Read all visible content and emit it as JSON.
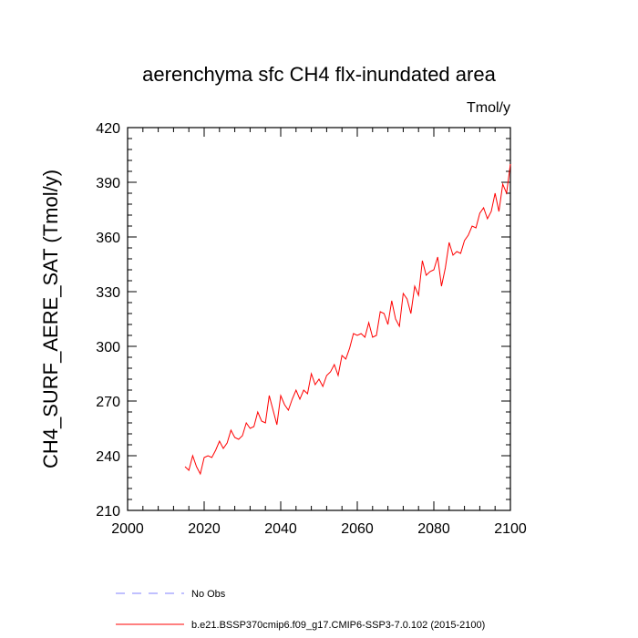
{
  "chart_data": {
    "type": "line",
    "title": "aerenchyma sfc CH4 flx-inundated area",
    "units_label": "Tmol/y",
    "ylabel": "CH4_SURF_AERE_SAT  (Tmol/y)",
    "xlabel": "",
    "xlim": [
      2000,
      2100
    ],
    "ylim": [
      210,
      420
    ],
    "x_ticks": [
      2000,
      2020,
      2040,
      2060,
      2080,
      2100
    ],
    "y_ticks": [
      210,
      240,
      270,
      300,
      330,
      360,
      390,
      420
    ],
    "x_minor_step": 4,
    "y_minor_step": 6,
    "series": [
      {
        "name": "b.e21.BSSP370cmip6.f09_g17.CMIP6-SSP3-7.0.102 (2015-2100)",
        "color": "#ff0000",
        "x_start": 2015,
        "x_step": 1,
        "values": [
          234,
          232,
          240,
          234,
          230,
          239,
          240,
          239,
          243,
          248,
          244,
          247,
          254,
          250,
          249,
          251,
          258,
          255,
          256,
          264,
          259,
          258,
          273,
          265,
          257,
          273,
          268,
          265,
          271,
          276,
          271,
          276,
          274,
          285,
          279,
          282,
          278,
          284,
          286,
          290,
          284,
          295,
          293,
          299,
          307,
          306,
          307,
          305,
          313,
          305,
          306,
          319,
          318,
          312,
          325,
          315,
          311,
          329,
          326,
          318,
          333,
          328,
          347,
          339,
          341,
          342,
          349,
          333,
          343,
          357,
          350,
          352,
          351,
          358,
          361,
          366,
          365,
          373,
          376,
          370,
          374,
          384,
          374,
          389,
          384,
          400
        ]
      }
    ],
    "legend": {
      "position": "bottom-left",
      "items": [
        {
          "label": "No Obs",
          "color": "#8080ff",
          "style": "dashed"
        },
        {
          "label": "b.e21.BSSP370cmip6.f09_g17.CMIP6-SSP3-7.0.102 (2015-2100)",
          "color": "#ff0000",
          "style": "solid"
        }
      ]
    }
  }
}
